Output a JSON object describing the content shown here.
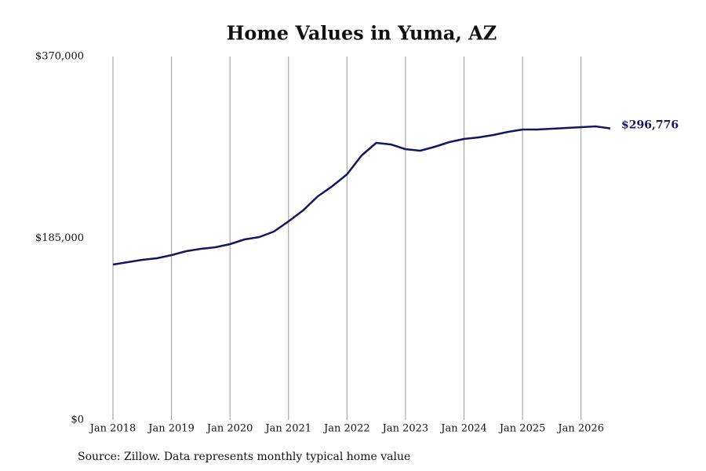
{
  "chart_data": {
    "type": "line",
    "title": "Home Values in Yuma, AZ",
    "source": "Source: Zillow. Data represents monthly typical home value",
    "end_label": "$296,776",
    "color": "#16165e",
    "x": [
      2018,
      2018.25,
      2018.5,
      2018.75,
      2019,
      2019.25,
      2019.5,
      2019.75,
      2020,
      2020.25,
      2020.5,
      2020.75,
      2021,
      2021.25,
      2021.5,
      2021.75,
      2022,
      2022.25,
      2022.5,
      2022.75,
      2023,
      2023.25,
      2023.5,
      2023.75,
      2024,
      2024.25,
      2024.5,
      2024.75,
      2025,
      2025.25,
      2025.5,
      2025.75,
      2026,
      2026.25,
      2026.5
    ],
    "values": [
      158200,
      160600,
      163000,
      164600,
      167800,
      171800,
      174200,
      175800,
      179000,
      183800,
      186200,
      191800,
      202200,
      213400,
      227700,
      238100,
      250100,
      269300,
      282100,
      280500,
      275700,
      274100,
      278100,
      282900,
      286100,
      287700,
      290100,
      293300,
      295700,
      295700,
      296500,
      297300,
      298100,
      298900,
      296776
    ],
    "xlim": [
      2018,
      2026.5
    ],
    "xticks": [
      {
        "value": 2018,
        "label": "Jan 2018"
      },
      {
        "value": 2019,
        "label": "Jan 2019"
      },
      {
        "value": 2020,
        "label": "Jan 2020"
      },
      {
        "value": 2021,
        "label": "Jan 2021"
      },
      {
        "value": 2022,
        "label": "Jan 2022"
      },
      {
        "value": 2023,
        "label": "Jan 2023"
      },
      {
        "value": 2024,
        "label": "Jan 2024"
      },
      {
        "value": 2025,
        "label": "Jan 2025"
      },
      {
        "value": 2026,
        "label": "Jan 2026"
      }
    ],
    "ylim": [
      0,
      370000
    ],
    "yticks": [
      {
        "value": 0,
        "label": "$0"
      },
      {
        "value": 185000,
        "label": "$185,000"
      },
      {
        "value": 370000,
        "label": "$370,000"
      }
    ],
    "grid": "x"
  }
}
